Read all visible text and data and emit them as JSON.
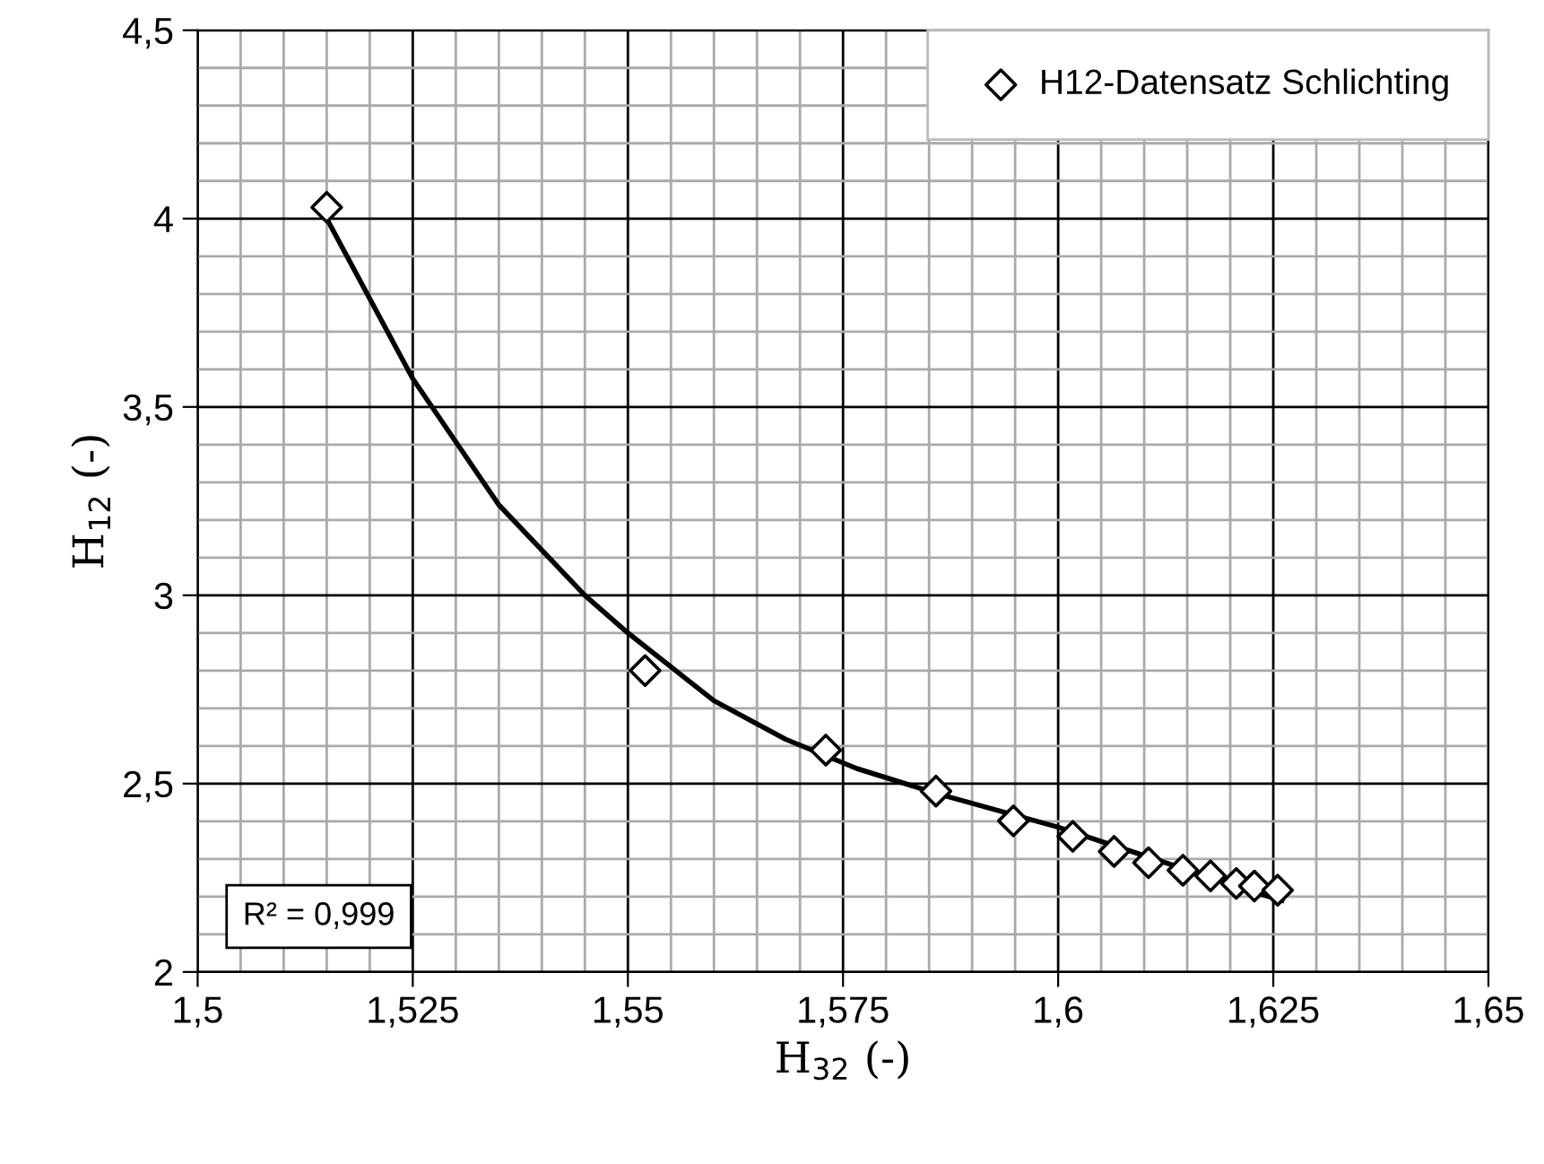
{
  "chart_data": {
    "type": "scatter",
    "xlabel": "H$_{32}$ (-)",
    "ylabel": "H$_{12}$ (-)",
    "xlim": [
      1.5,
      1.65
    ],
    "ylim": [
      2,
      4.5
    ],
    "xticks": [
      {
        "value": 1.5,
        "label": "1,5"
      },
      {
        "value": 1.525,
        "label": "1,525"
      },
      {
        "value": 1.55,
        "label": "1,55"
      },
      {
        "value": 1.575,
        "label": "1,575"
      },
      {
        "value": 1.6,
        "label": "1,6"
      },
      {
        "value": 1.625,
        "label": "1,625"
      },
      {
        "value": 1.65,
        "label": "1,65"
      }
    ],
    "yticks": [
      {
        "value": 2,
        "label": "2"
      },
      {
        "value": 2.5,
        "label": "2,5"
      },
      {
        "value": 3,
        "label": "3"
      },
      {
        "value": 3.5,
        "label": "3,5"
      },
      {
        "value": 4,
        "label": "4"
      },
      {
        "value": 4.5,
        "label": "4,5"
      }
    ],
    "grid": true,
    "legend": "top right",
    "marker": "diamond",
    "annotations": [
      "R² = 0,999"
    ],
    "series": [
      {
        "name": "H12-Datensatz Schlichting",
        "color": "#000000",
        "x": [
          1.515,
          1.552,
          1.573,
          1.5858,
          1.5948,
          1.6017,
          1.6065,
          1.6105,
          1.6145,
          1.6177,
          1.6207,
          1.6228,
          1.6255
        ],
        "values": [
          4.03,
          2.8,
          2.589,
          2.48,
          2.401,
          2.36,
          2.32,
          2.29,
          2.27,
          2.255,
          2.235,
          2.228,
          2.217
        ]
      },
      {
        "type": "line",
        "color": "#000000",
        "marker": "none",
        "x": [
          1.515,
          1.525,
          1.535,
          1.545,
          1.55,
          1.56,
          1.5683,
          1.5766,
          1.5857,
          1.5999,
          1.6125,
          1.6245,
          1.626
        ],
        "values": [
          4.0,
          3.575,
          3.24,
          3.0,
          2.9,
          2.72,
          2.618,
          2.54,
          2.475,
          2.385,
          2.29,
          2.2,
          2.19
        ]
      }
    ]
  }
}
